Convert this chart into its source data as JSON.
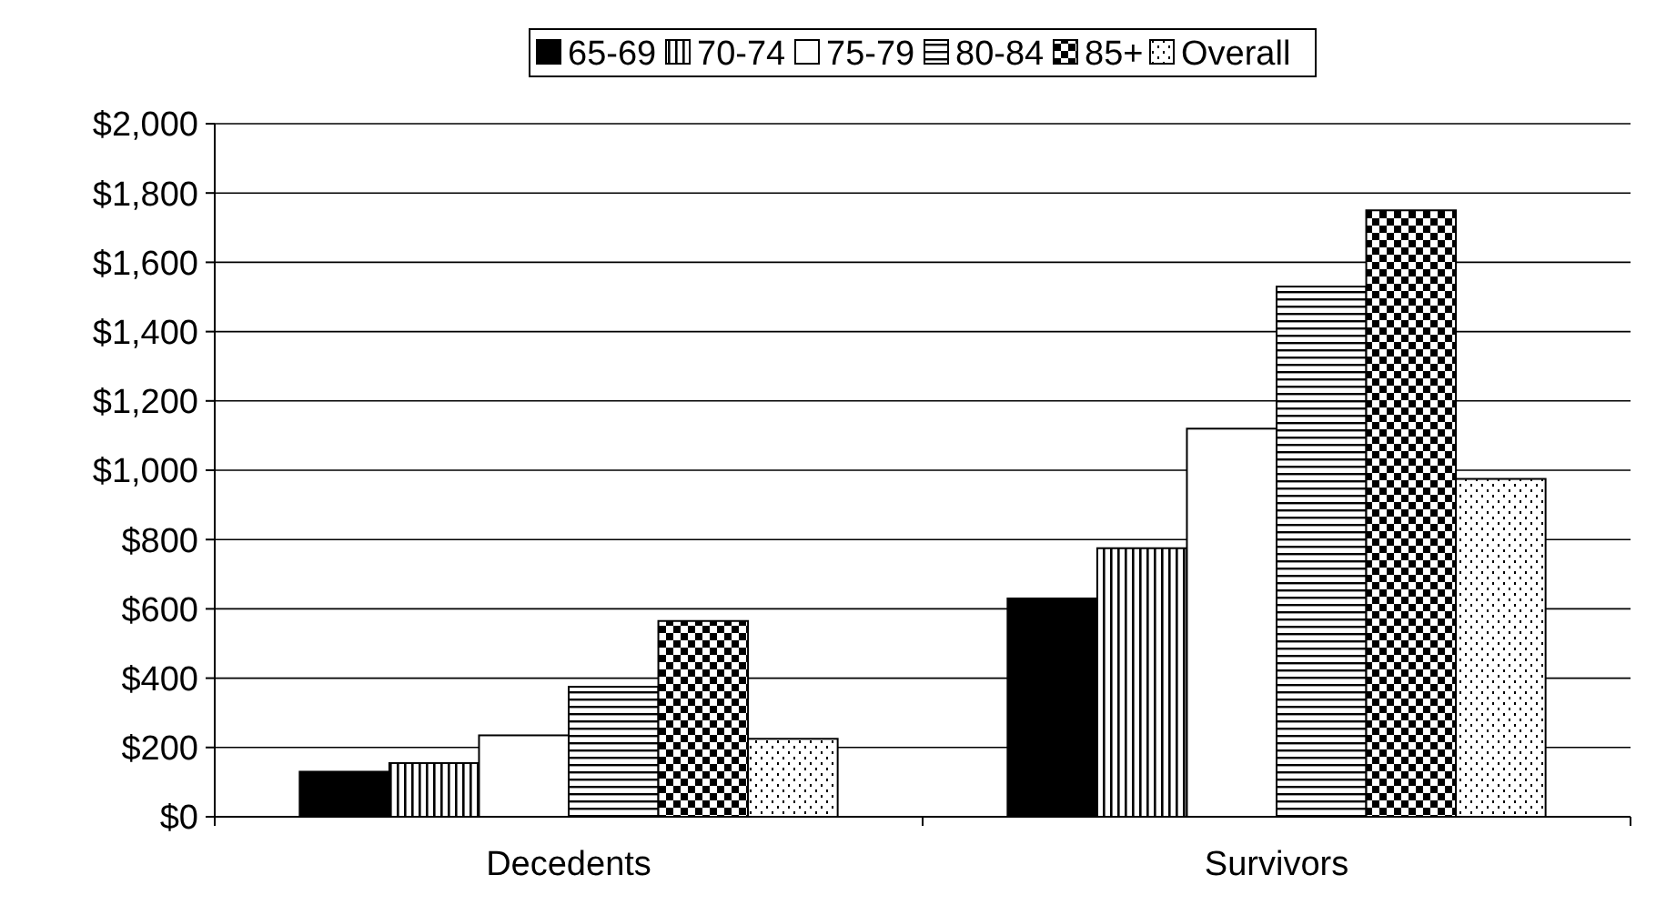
{
  "chart_data": {
    "type": "bar",
    "categories": [
      "Decedents",
      "Survivors"
    ],
    "series": [
      {
        "name": "65-69",
        "color": "#000000",
        "values": [
          130,
          630
        ]
      },
      {
        "name": "70-74",
        "color": "#000000",
        "values": [
          155,
          775
        ]
      },
      {
        "name": "75-79",
        "color": "#000000",
        "values": [
          235,
          1120
        ]
      },
      {
        "name": "80-84",
        "color": "#000000",
        "values": [
          375,
          1530
        ]
      },
      {
        "name": "85+",
        "color": "#000000",
        "values": [
          565,
          1750
        ]
      },
      {
        "name": "Overall",
        "color": "#000000",
        "values": [
          225,
          975
        ]
      }
    ],
    "ylim": [
      0,
      2000
    ],
    "yticks": [
      {
        "value": 0,
        "label": "$0"
      },
      {
        "value": 200,
        "label": "$200"
      },
      {
        "value": 400,
        "label": "$400"
      },
      {
        "value": 600,
        "label": "$600"
      },
      {
        "value": 800,
        "label": "$800"
      },
      {
        "value": 1000,
        "label": "$1,000"
      },
      {
        "value": 1200,
        "label": "$1,200"
      },
      {
        "value": 1400,
        "label": "$1,400"
      },
      {
        "value": 1600,
        "label": "$1,600"
      },
      {
        "value": 1800,
        "label": "$1,800"
      },
      {
        "value": 2000,
        "label": "$2,000"
      }
    ],
    "grid": "y",
    "legend": "top"
  }
}
